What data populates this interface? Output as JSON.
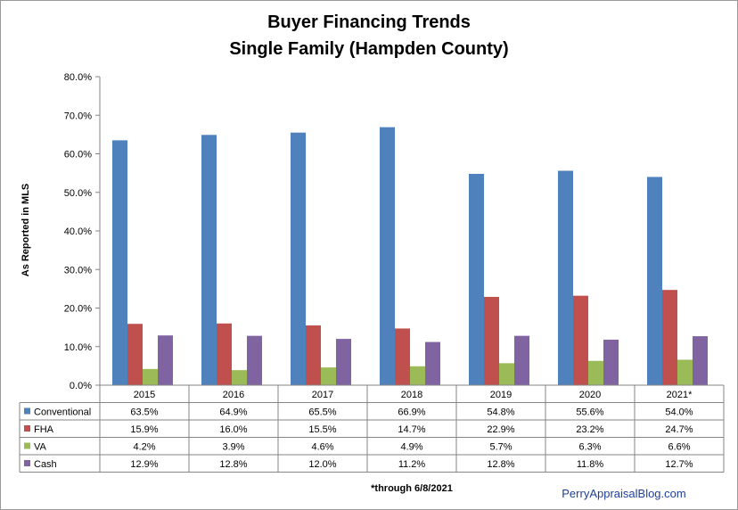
{
  "chart_data": {
    "type": "bar",
    "title_lines": [
      "Buyer Financing Trends",
      "Single Family (Hampden County)"
    ],
    "ylabel": "As Reported in MLS",
    "xlabel": "",
    "ylim": [
      0,
      80
    ],
    "yticks": [
      0,
      10,
      20,
      30,
      40,
      50,
      60,
      70,
      80
    ],
    "ytick_labels": [
      "0.0%",
      "10.0%",
      "20.0%",
      "30.0%",
      "40.0%",
      "50.0%",
      "60.0%",
      "70.0%",
      "80.0%"
    ],
    "categories": [
      "2015",
      "2016",
      "2017",
      "2018",
      "2019",
      "2020",
      "2021*"
    ],
    "series": [
      {
        "name": "Conventional",
        "color": "#4f81bd",
        "values": [
          63.5,
          64.9,
          65.5,
          66.9,
          54.8,
          55.6,
          54.0
        ],
        "labels": [
          "63.5%",
          "64.9%",
          "65.5%",
          "66.9%",
          "54.8%",
          "55.6%",
          "54.0%"
        ]
      },
      {
        "name": "FHA",
        "color": "#c0504d",
        "values": [
          15.9,
          16.0,
          15.5,
          14.7,
          22.9,
          23.2,
          24.7
        ],
        "labels": [
          "15.9%",
          "16.0%",
          "15.5%",
          "14.7%",
          "22.9%",
          "23.2%",
          "24.7%"
        ]
      },
      {
        "name": "VA",
        "color": "#9bbb59",
        "values": [
          4.2,
          3.9,
          4.6,
          4.9,
          5.7,
          6.3,
          6.6
        ],
        "labels": [
          "4.2%",
          "3.9%",
          "4.6%",
          "4.9%",
          "5.7%",
          "6.3%",
          "6.6%"
        ]
      },
      {
        "name": "Cash",
        "color": "#8064a2",
        "values": [
          12.9,
          12.8,
          12.0,
          11.2,
          12.8,
          11.8,
          12.7
        ],
        "labels": [
          "12.9%",
          "12.8%",
          "12.0%",
          "11.2%",
          "12.8%",
          "11.8%",
          "12.7%"
        ]
      }
    ],
    "grid": false,
    "legend": "data-table-left"
  },
  "footnote": "*through 6/8/2021",
  "brand": "PerryAppraisalBlog.com"
}
